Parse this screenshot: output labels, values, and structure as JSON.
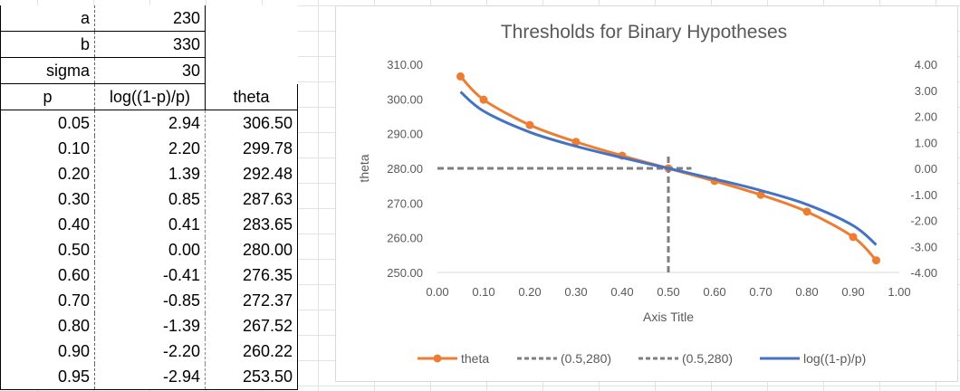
{
  "sheet": {
    "params": [
      {
        "label": "a",
        "value": "230"
      },
      {
        "label": "b",
        "value": "330"
      },
      {
        "label": "sigma",
        "value": "30"
      }
    ],
    "headers": [
      "p",
      "log((1-p)/p)",
      "theta"
    ],
    "rows": [
      [
        "0.05",
        "2.94",
        "306.50"
      ],
      [
        "0.10",
        "2.20",
        "299.78"
      ],
      [
        "0.20",
        "1.39",
        "292.48"
      ],
      [
        "0.30",
        "0.85",
        "287.63"
      ],
      [
        "0.40",
        "0.41",
        "283.65"
      ],
      [
        "0.50",
        "0.00",
        "280.00"
      ],
      [
        "0.60",
        "-0.41",
        "276.35"
      ],
      [
        "0.70",
        "-0.85",
        "272.37"
      ],
      [
        "0.80",
        "-1.39",
        "267.52"
      ],
      [
        "0.90",
        "-2.20",
        "260.22"
      ],
      [
        "0.95",
        "-2.94",
        "253.50"
      ]
    ]
  },
  "chart_data": {
    "type": "line",
    "title": "Thresholds for Binary Hypotheses",
    "xlabel": "Axis Title",
    "ylabel": "theta",
    "xlim": [
      0,
      1
    ],
    "ylim": [
      250,
      310
    ],
    "y2lim": [
      -4,
      4
    ],
    "x_ticks": [
      "0.00",
      "0.10",
      "0.20",
      "0.30",
      "0.40",
      "0.50",
      "0.60",
      "0.70",
      "0.80",
      "0.90",
      "1.00"
    ],
    "y_ticks": [
      "250.00",
      "260.00",
      "270.00",
      "280.00",
      "290.00",
      "300.00",
      "310.00"
    ],
    "y2_ticks": [
      "-4.00",
      "-3.00",
      "-2.00",
      "-1.00",
      "0.00",
      "1.00",
      "2.00",
      "3.00",
      "4.00"
    ],
    "grid": false,
    "legend_position": "bottom",
    "series": [
      {
        "name": "theta",
        "axis": "primary",
        "color": "#ED7D31",
        "style": "line-markers",
        "x": [
          0.05,
          0.1,
          0.2,
          0.3,
          0.4,
          0.5,
          0.6,
          0.7,
          0.8,
          0.9,
          0.95
        ],
        "y": [
          306.5,
          299.78,
          292.48,
          287.63,
          283.65,
          280.0,
          276.35,
          272.37,
          267.52,
          260.22,
          253.5
        ]
      },
      {
        "name": "(0.5,280)",
        "axis": "primary",
        "color": "#7F7F7F",
        "style": "dashed",
        "x": [
          0,
          0.55
        ],
        "y": [
          280,
          280
        ]
      },
      {
        "name": "(0.5,280)",
        "axis": "primary",
        "color": "#7F7F7F",
        "style": "dashed",
        "x": [
          0.5,
          0.5
        ],
        "y": [
          250,
          284
        ]
      },
      {
        "name": "log((1-p)/p)",
        "axis": "secondary",
        "color": "#4472C4",
        "style": "smooth-line",
        "x": [
          0.05,
          0.1,
          0.2,
          0.3,
          0.4,
          0.5,
          0.6,
          0.7,
          0.8,
          0.9,
          0.95
        ],
        "y": [
          2.94,
          2.2,
          1.39,
          0.85,
          0.41,
          0.0,
          -0.41,
          -0.85,
          -1.39,
          -2.2,
          -2.94
        ]
      }
    ]
  }
}
